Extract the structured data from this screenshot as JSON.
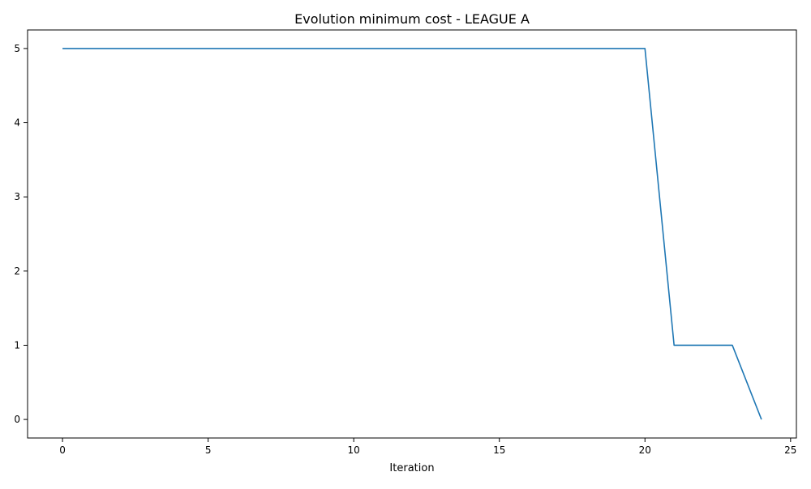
{
  "chart_data": {
    "type": "line",
    "title": "Evolution minimum cost - LEAGUE A",
    "xlabel": "Iteration",
    "ylabel": "",
    "xlim": [
      -1.2,
      25.2
    ],
    "ylim": [
      -0.25,
      5.25
    ],
    "xticks": [
      0,
      5,
      10,
      15,
      20,
      25
    ],
    "yticks": [
      0,
      1,
      2,
      3,
      4,
      5
    ],
    "grid": false,
    "legend": "none",
    "series": [
      {
        "color": "#1f77b4",
        "x": [
          0,
          1,
          2,
          3,
          4,
          5,
          6,
          7,
          8,
          9,
          10,
          11,
          12,
          13,
          14,
          15,
          16,
          17,
          18,
          19,
          20,
          21,
          22,
          23,
          24
        ],
        "y": [
          5,
          5,
          5,
          5,
          5,
          5,
          5,
          5,
          5,
          5,
          5,
          5,
          5,
          5,
          5,
          5,
          5,
          5,
          5,
          5,
          5,
          1,
          1,
          1,
          0
        ]
      }
    ]
  }
}
